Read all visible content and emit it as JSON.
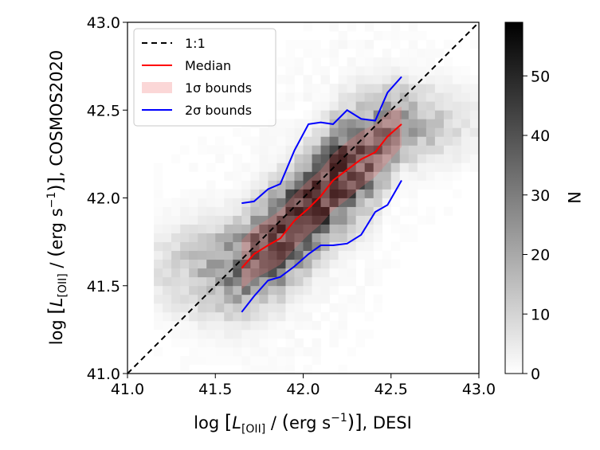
{
  "chart_data": {
    "type": "heatmap",
    "title": "",
    "xlabel": "log [L_[OII] / (erg s^-1)], DESI",
    "ylabel": "log [L_[OII] / (erg s^-1)], COSMOS2020",
    "xlim": [
      41.0,
      43.0
    ],
    "ylim": [
      41.0,
      43.0
    ],
    "xticks": [
      "41.0",
      "41.5",
      "42.0",
      "42.5",
      "43.0"
    ],
    "yticks": [
      "41.0",
      "41.5",
      "42.0",
      "42.5",
      "43.0"
    ],
    "colorbar": {
      "label": "N",
      "range": [
        0,
        59
      ],
      "ticks": [
        "0",
        "10",
        "20",
        "30",
        "40",
        "50"
      ],
      "colormap": "gray_r"
    },
    "histogram": {
      "bin_size": 0.05,
      "peak": {
        "x": 42.05,
        "y": 42.02,
        "count": 59
      },
      "note": "2D histogram of galaxy counts concentrated along the median relation"
    },
    "legend": {
      "placement": "top-left",
      "entries": [
        {
          "label": "1:1",
          "style": "dashed",
          "color": "#000000"
        },
        {
          "label": "Median",
          "style": "solid",
          "color": "#ff0000"
        },
        {
          "label": "1σ bounds",
          "style": "band",
          "color": "#f5b8b8"
        },
        {
          "label": "2σ bounds",
          "style": "solid",
          "color": "#0000ff"
        }
      ]
    },
    "series": [
      {
        "name": "1:1",
        "x": [
          41.0,
          43.0
        ],
        "y": [
          41.0,
          43.0
        ]
      },
      {
        "name": "Median",
        "x": [
          41.65,
          41.72,
          41.8,
          41.87,
          41.95,
          42.03,
          42.1,
          42.17,
          42.25,
          42.33,
          42.41,
          42.48,
          42.56
        ],
        "y": [
          41.6,
          41.68,
          41.73,
          41.77,
          41.87,
          41.94,
          42.01,
          42.1,
          42.16,
          42.22,
          42.26,
          42.35,
          42.42
        ]
      },
      {
        "name": "1σ upper",
        "x": [
          41.65,
          41.72,
          41.8,
          41.87,
          41.95,
          42.03,
          42.1,
          42.17,
          42.25,
          42.33,
          42.41,
          42.48,
          42.56
        ],
        "y": [
          41.76,
          41.83,
          41.88,
          41.93,
          42.02,
          42.1,
          42.16,
          42.25,
          42.32,
          42.38,
          42.42,
          42.49,
          42.52
        ]
      },
      {
        "name": "1σ lower",
        "x": [
          41.65,
          41.72,
          41.8,
          41.87,
          41.95,
          42.03,
          42.1,
          42.17,
          42.25,
          42.33,
          42.41,
          42.48,
          42.56
        ],
        "y": [
          41.48,
          41.54,
          41.58,
          41.62,
          41.71,
          41.79,
          41.85,
          41.93,
          41.99,
          42.06,
          42.12,
          42.2,
          42.29
        ]
      },
      {
        "name": "2σ upper",
        "x": [
          41.65,
          41.72,
          41.8,
          41.87,
          41.95,
          42.03,
          42.1,
          42.17,
          42.25,
          42.33,
          42.41,
          42.48,
          42.56
        ],
        "y": [
          41.97,
          41.98,
          42.05,
          42.08,
          42.27,
          42.42,
          42.43,
          42.42,
          42.5,
          42.45,
          42.44,
          42.6,
          42.69
        ]
      },
      {
        "name": "2σ lower",
        "x": [
          41.65,
          41.72,
          41.8,
          41.87,
          41.95,
          42.03,
          42.1,
          42.17,
          42.25,
          42.33,
          42.41,
          42.48,
          42.56
        ],
        "y": [
          41.35,
          41.44,
          41.53,
          41.55,
          41.61,
          41.68,
          41.73,
          41.73,
          41.74,
          41.79,
          41.92,
          41.96,
          42.1
        ]
      }
    ]
  }
}
